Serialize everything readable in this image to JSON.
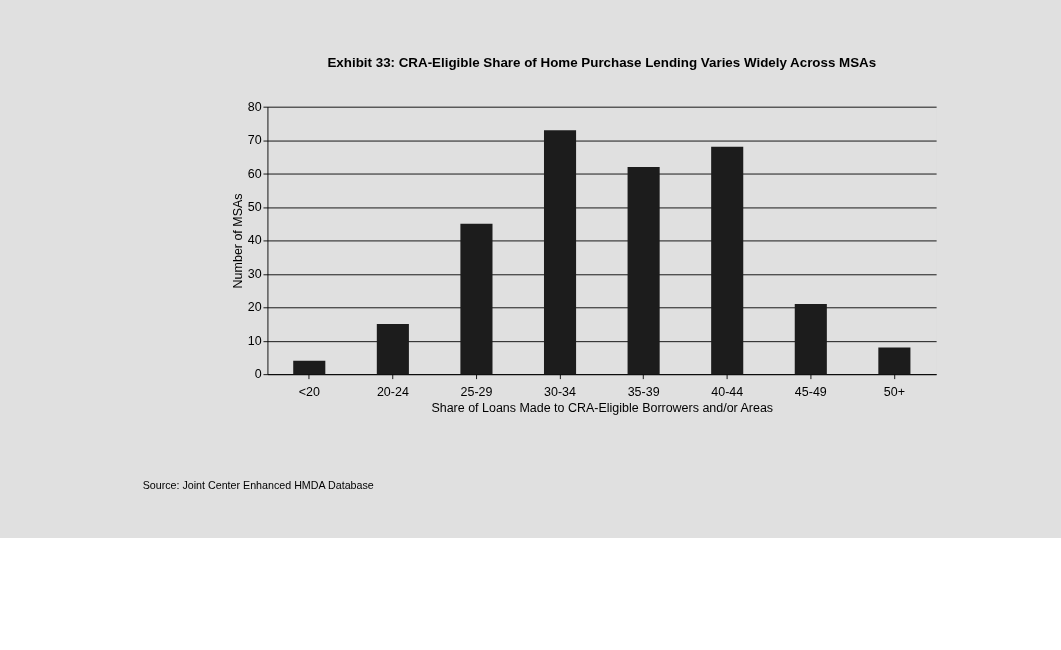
{
  "chart_data": {
    "type": "bar",
    "title": "Exhibit 33: CRA-Eligible Share of Home Purchase Lending Varies Widely Across MSAs",
    "xlabel": "Share of Loans Made to CRA-Eligible Borrowers and/or Areas",
    "ylabel": "Number of MSAs",
    "categories": [
      "<20",
      "20-24",
      "25-29",
      "30-34",
      "35-39",
      "40-44",
      "45-49",
      "50+"
    ],
    "values": [
      4,
      15,
      45,
      73,
      62,
      68,
      21,
      8
    ],
    "color": "#1c1c1c",
    "ylim": [
      0,
      80
    ],
    "yticks": [
      0,
      10,
      20,
      30,
      40,
      50,
      60,
      70,
      80
    ],
    "grid": "y",
    "annotations": [
      "Source:  Joint Center Enhanced HMDA Database"
    ]
  }
}
